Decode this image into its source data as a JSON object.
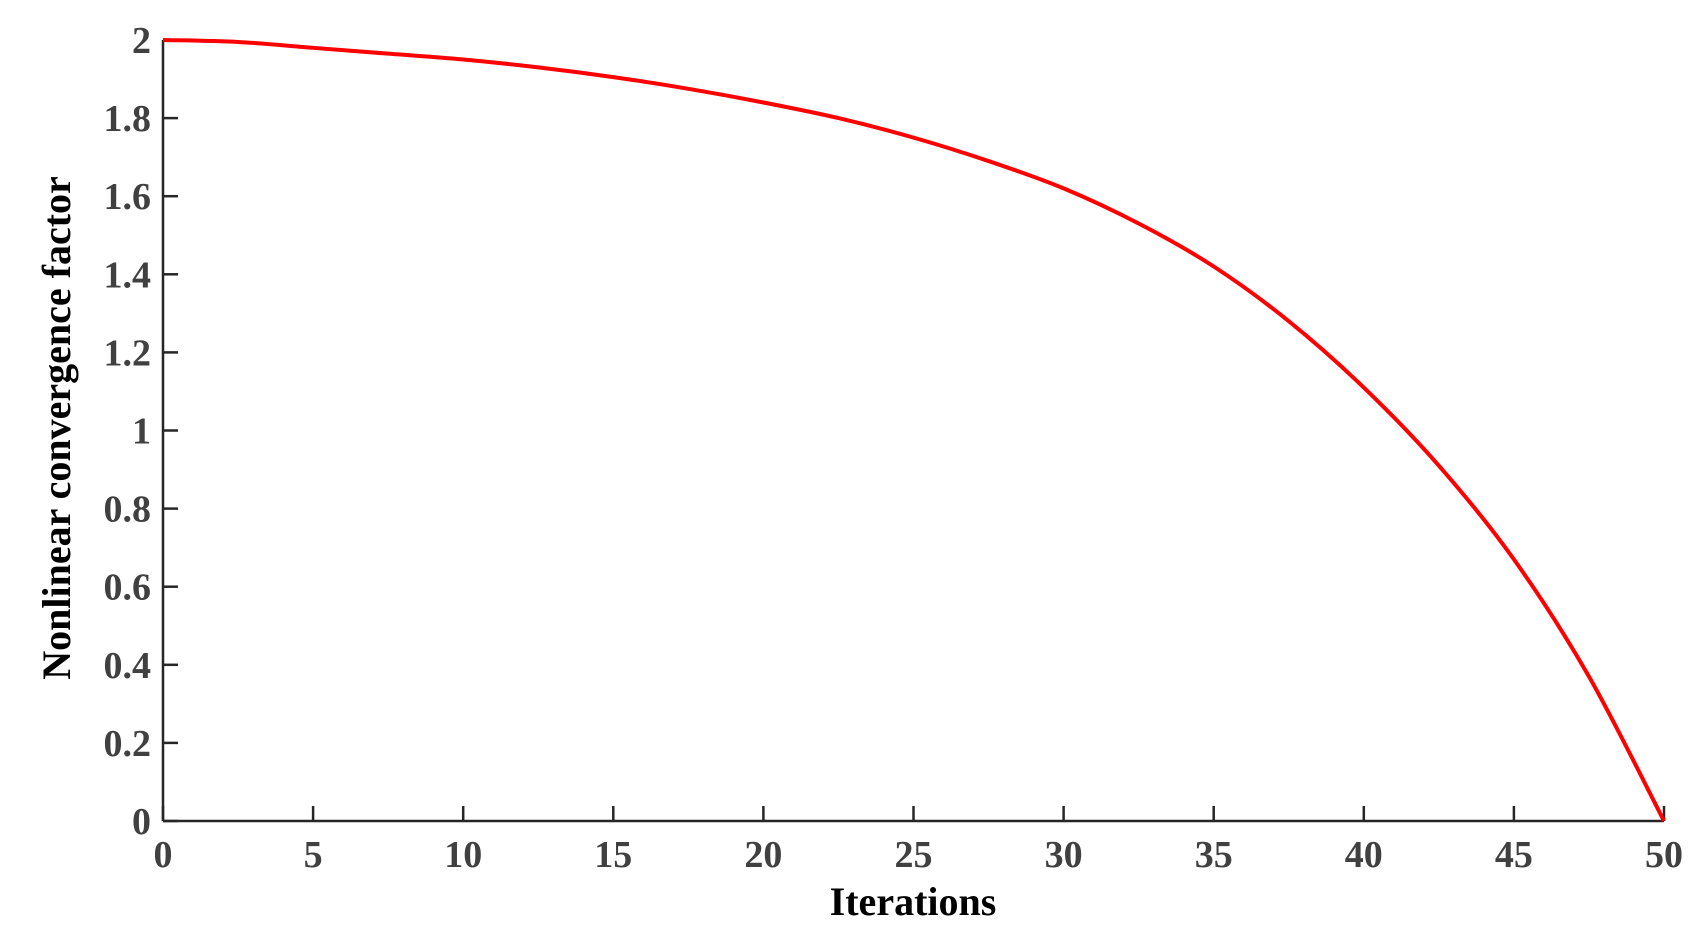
{
  "chart_data": {
    "type": "line",
    "title": "",
    "xlabel": "Iterations",
    "ylabel": "Nonlinear convergence factor",
    "xlim": [
      0,
      50
    ],
    "ylim": [
      0,
      2
    ],
    "grid": false,
    "xticks": [
      "0",
      "5",
      "10",
      "15",
      "20",
      "25",
      "30",
      "35",
      "40",
      "45",
      "50"
    ],
    "yticks": [
      "0",
      "0.2",
      "0.4",
      "0.6",
      "0.8",
      "1",
      "1.2",
      "1.4",
      "1.6",
      "1.8",
      "2"
    ],
    "series": [
      {
        "color": "#ff0000",
        "x": [
          0,
          2.5,
          5,
          7.5,
          10,
          12.5,
          15,
          17.5,
          20,
          22.5,
          25,
          27.5,
          30,
          32.5,
          35,
          37.5,
          40,
          42.5,
          45,
          47.5,
          50
        ],
        "y": [
          2.0,
          1.995,
          1.98,
          1.965,
          1.95,
          1.93,
          1.905,
          1.875,
          1.84,
          1.8,
          1.75,
          1.69,
          1.62,
          1.53,
          1.42,
          1.28,
          1.11,
          0.91,
          0.67,
          0.37,
          0.0
        ]
      }
    ]
  }
}
